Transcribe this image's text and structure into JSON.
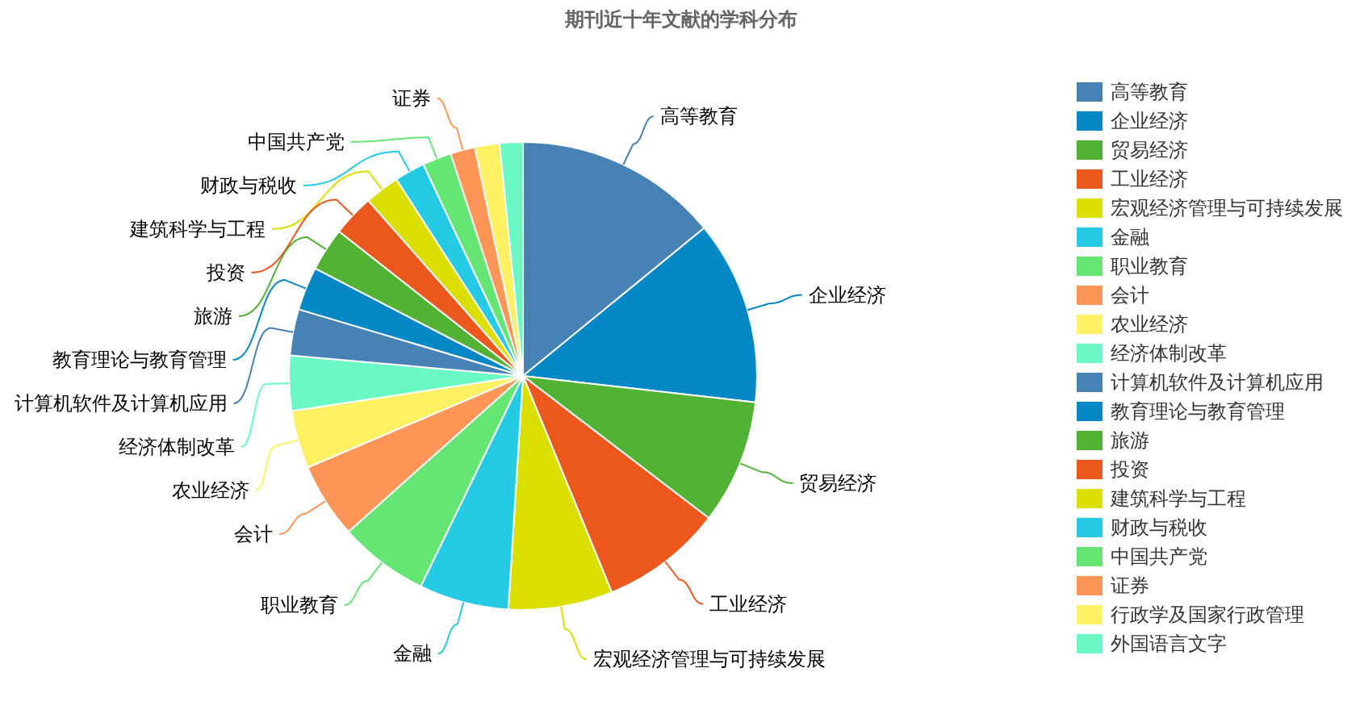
{
  "chart_data": {
    "type": "pie",
    "title": "期刊近十年文献的学科分布",
    "categories": [
      "高等教育",
      "企业经济",
      "贸易经济",
      "工业经济",
      "宏观经济管理与可持续发展",
      "金融",
      "职业教育",
      "会计",
      "农业经济",
      "经济体制改革",
      "计算机软件及计算机应用",
      "教育理论与教育管理",
      "旅游",
      "投资",
      "建筑科学与工程",
      "财政与税收",
      "中国共产党",
      "证券",
      "行政学及国家行政管理",
      "外国语言文字"
    ],
    "values": [
      14.1,
      12.7,
      8.6,
      8.4,
      7.2,
      6.2,
      6.2,
      5.2,
      4.0,
      3.8,
      3.2,
      3.0,
      3.0,
      2.9,
      2.4,
      2.1,
      2.0,
      1.7,
      1.7,
      1.6
    ],
    "colors": [
      "#4682b4",
      "#0687c6",
      "#52b233",
      "#ec571d",
      "#dbdf00",
      "#25cbe5",
      "#65e573",
      "#ff9658",
      "#fff064",
      "#6af8c4",
      "#4682b4",
      "#0687c6",
      "#52b233",
      "#ec571d",
      "#dbdf00",
      "#25cbe5",
      "#65e573",
      "#ff9658",
      "#fff064",
      "#6af8c4"
    ],
    "legend": "right"
  }
}
